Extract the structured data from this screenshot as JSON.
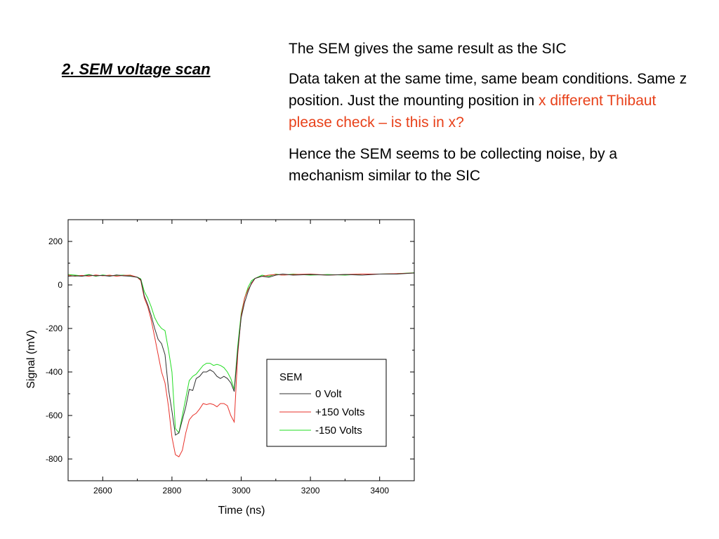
{
  "slide": {
    "section_title": "2. SEM voltage scan",
    "paragraph1": "The SEM  gives the same result as the SIC",
    "paragraph2_black": "Data taken at the same time, same beam conditions. Same z position.  Just the mounting position in ",
    "paragraph2_red": "x different Thibaut please check – is this in x?",
    "paragraph3": "Hence the SEM seems to be collecting noise, by a mechanism similar to the  SIC",
    "accent_color": "#e8411a"
  },
  "chart_data": {
    "type": "line",
    "title": "",
    "xlabel": "Time (ns)",
    "ylabel": "Signal (mV)",
    "xlim": [
      2500,
      3500
    ],
    "ylim": [
      -900,
      300
    ],
    "xticks": [
      2600,
      2800,
      3000,
      3200,
      3400
    ],
    "yticks": [
      200,
      0,
      -200,
      -400,
      -600,
      -800
    ],
    "legend_title": "SEM",
    "legend_position": "bottom-right",
    "x": [
      2500,
      2520,
      2540,
      2560,
      2580,
      2600,
      2620,
      2640,
      2660,
      2680,
      2700,
      2710,
      2720,
      2730,
      2740,
      2750,
      2760,
      2770,
      2780,
      2790,
      2800,
      2810,
      2820,
      2830,
      2840,
      2850,
      2860,
      2870,
      2880,
      2890,
      2900,
      2910,
      2920,
      2930,
      2940,
      2950,
      2960,
      2970,
      2980,
      2990,
      3000,
      3010,
      3020,
      3030,
      3040,
      3060,
      3080,
      3100,
      3120,
      3150,
      3200,
      3250,
      3300,
      3350,
      3400,
      3450,
      3500
    ],
    "series": [
      {
        "name": "0 Volt",
        "color": "#303030",
        "values": [
          40,
          42,
          40,
          45,
          42,
          44,
          40,
          46,
          42,
          40,
          35,
          25,
          -50,
          -90,
          -140,
          -200,
          -250,
          -270,
          -320,
          -480,
          -580,
          -690,
          -680,
          -620,
          -560,
          -480,
          -485,
          -430,
          -420,
          -400,
          -400,
          -390,
          -400,
          -420,
          -430,
          -420,
          -430,
          -450,
          -490,
          -300,
          -150,
          -80,
          -30,
          10,
          30,
          40,
          35,
          45,
          50,
          45,
          48,
          45,
          48,
          45,
          50,
          50,
          55
        ]
      },
      {
        "name": "+150 Volts",
        "color": "#e8312a",
        "values": [
          45,
          40,
          44,
          40,
          46,
          42,
          45,
          40,
          44,
          45,
          35,
          20,
          -60,
          -100,
          -160,
          -240,
          -320,
          -400,
          -450,
          -560,
          -700,
          -780,
          -790,
          -760,
          -680,
          -620,
          -600,
          -590,
          -570,
          -545,
          -550,
          -545,
          -550,
          -560,
          -545,
          -545,
          -555,
          -600,
          -630,
          -320,
          -140,
          -60,
          -20,
          5,
          30,
          40,
          45,
          48,
          45,
          48,
          50,
          45,
          48,
          50,
          50,
          52,
          55
        ]
      },
      {
        "name": "-150 Volts",
        "color": "#22dd22",
        "values": [
          48,
          45,
          42,
          48,
          40,
          46,
          42,
          44,
          45,
          42,
          36,
          28,
          -30,
          -60,
          -100,
          -150,
          -180,
          -200,
          -210,
          -300,
          -400,
          -660,
          -680,
          -600,
          -520,
          -440,
          -420,
          -410,
          -390,
          -370,
          -360,
          -360,
          -370,
          -365,
          -370,
          -380,
          -400,
          -430,
          -480,
          -280,
          -130,
          -60,
          -10,
          20,
          30,
          45,
          40,
          50,
          45,
          50,
          45,
          48,
          45,
          50,
          50,
          52,
          56
        ]
      }
    ]
  }
}
